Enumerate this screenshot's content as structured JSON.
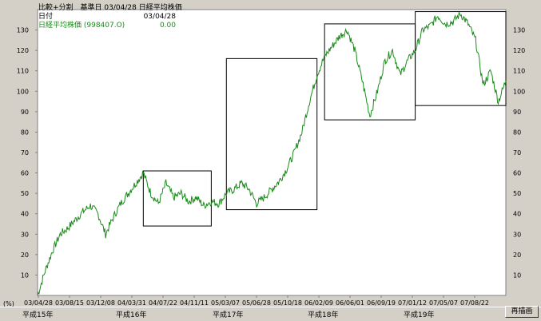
{
  "legend": {
    "line1_label": "比較+分割　基準日",
    "line1_date": "03/04/28",
    "line1_name": "日経平均株価",
    "row2_label": "日付",
    "row2_value": "03/04/28",
    "row3_label": "日経平均株価 (998407.O)",
    "row3_value": "0.00",
    "series_color": "#1a8a1a"
  },
  "era_labels": [
    "平成15年",
    "平成16年",
    "平成17年",
    "平成18年",
    "平成19年"
  ],
  "redraw_button": "再描画",
  "chart_data": {
    "type": "line",
    "y_unit_label": "(%)",
    "ylim": [
      0,
      140
    ],
    "y_ticks": [
      10,
      20,
      30,
      40,
      50,
      60,
      70,
      80,
      90,
      100,
      110,
      120,
      130
    ],
    "x_tick_labels": [
      "03/04/28",
      "03/08/15",
      "03/12/08",
      "04/03/31",
      "04/07/22",
      "04/11/11",
      "05/03/07",
      "05/06/28",
      "05/10/18",
      "06/02/09",
      "06/06/01",
      "06/09/19",
      "07/01/12",
      "07/05/07",
      "07/08/22"
    ],
    "series": [
      {
        "values": [
          0,
          12,
          22,
          30,
          33,
          37,
          41,
          44,
          40,
          30,
          38,
          45,
          50,
          55,
          60,
          50,
          45,
          55,
          48,
          50,
          46,
          48,
          44,
          46,
          45,
          50,
          52,
          55,
          52,
          45,
          48,
          52,
          56,
          62,
          70,
          80,
          95,
          108,
          117,
          122,
          127,
          130,
          120,
          105,
          88,
          100,
          115,
          120,
          108,
          115,
          120,
          130,
          132,
          137,
          133,
          134,
          138,
          133,
          125,
          103,
          110,
          95,
          105
        ]
      }
    ],
    "annotation_boxes": [
      {
        "x_from": 14,
        "x_to": 23,
        "y_from": 34,
        "y_to": 61
      },
      {
        "x_from": 25,
        "x_to": 37,
        "y_from": 42,
        "y_to": 116
      },
      {
        "x_from": 38,
        "x_to": 50,
        "y_from": 86,
        "y_to": 133
      },
      {
        "x_from": 50,
        "x_to": 62,
        "y_from": 93,
        "y_to": 139
      }
    ]
  }
}
